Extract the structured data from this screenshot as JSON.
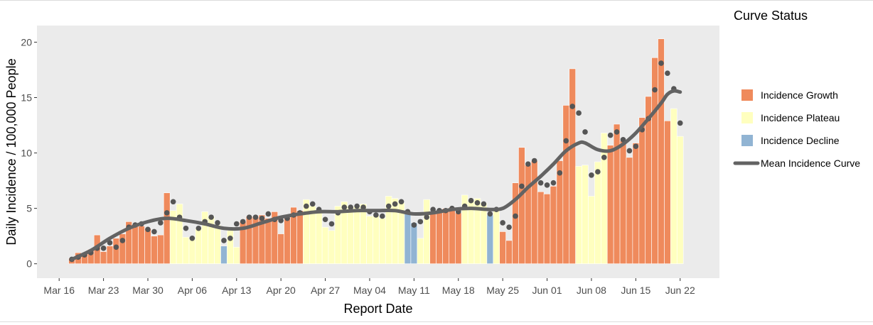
{
  "chart_data": {
    "type": "bar",
    "xlabel": "Report Date",
    "ylabel": "Daily Incidence / 100,000 People",
    "ylim": [
      -1.3,
      21.5
    ],
    "yticks": [
      0,
      5,
      10,
      15,
      20
    ],
    "xticks": [
      {
        "label": "Mar 16",
        "day": 0
      },
      {
        "label": "Mar 23",
        "day": 7
      },
      {
        "label": "Mar 30",
        "day": 14
      },
      {
        "label": "Apr 06",
        "day": 21
      },
      {
        "label": "Apr 13",
        "day": 28
      },
      {
        "label": "Apr 20",
        "day": 35
      },
      {
        "label": "Apr 27",
        "day": 42
      },
      {
        "label": "May 04",
        "day": 49
      },
      {
        "label": "May 11",
        "day": 56
      },
      {
        "label": "May 18",
        "day": 63
      },
      {
        "label": "May 25",
        "day": 70
      },
      {
        "label": "Jun 01",
        "day": 77
      },
      {
        "label": "Jun 08",
        "day": 84
      },
      {
        "label": "Jun 15",
        "day": 91
      },
      {
        "label": "Jun 22",
        "day": 98
      }
    ],
    "bar_days": [
      2,
      3,
      4,
      5,
      6,
      7,
      8,
      9,
      10,
      11,
      12,
      13,
      14,
      15,
      16,
      17,
      18,
      19,
      20,
      21,
      22,
      23,
      24,
      25,
      26,
      27,
      28,
      29,
      30,
      31,
      32,
      33,
      34,
      35,
      36,
      37,
      38,
      39,
      40,
      41,
      42,
      43,
      44,
      45,
      46,
      47,
      48,
      49,
      50,
      51,
      52,
      53,
      54,
      55,
      56,
      57,
      58,
      59,
      60,
      61,
      62,
      63,
      64,
      65,
      66,
      67,
      68,
      69,
      70,
      71,
      72,
      73,
      74,
      75,
      76,
      77,
      78,
      79,
      80,
      81,
      82,
      83,
      84,
      85,
      86,
      87,
      88,
      89,
      90,
      91,
      92,
      93,
      94,
      95,
      96,
      97,
      98
    ],
    "bar_values": [
      0.5,
      1.0,
      0.9,
      1.3,
      2.6,
      1.1,
      1.6,
      2.3,
      2.7,
      3.8,
      3.5,
      3.4,
      3.2,
      2.5,
      2.6,
      6.4,
      4.8,
      5.4,
      2.4,
      2.2,
      3.2,
      4.7,
      4.3,
      3.5,
      1.6,
      3.0,
      1.5,
      3.8,
      4.3,
      4.2,
      4.4,
      4.1,
      4.7,
      2.7,
      4.2,
      5.1,
      4.8,
      5.8,
      5.2,
      4.8,
      3.3,
      3.0,
      5.2,
      5.6,
      5.2,
      5.2,
      5.4,
      4.3,
      4.4,
      4.1,
      6.1,
      5.9,
      5.5,
      4.6,
      3.7,
      2.3,
      5.8,
      4.6,
      4.6,
      5.0,
      5.1,
      4.6,
      6.2,
      5.7,
      5.9,
      5.5,
      4.4,
      5.0,
      2.9,
      2.1,
      7.3,
      10.5,
      8.9,
      9.3,
      6.5,
      6.3,
      7.0,
      9.3,
      14.3,
      17.6,
      8.8,
      8.9,
      6.1,
      9.2,
      11.8,
      10.7,
      12.6,
      11.1,
      9.6,
      10.9,
      13.2,
      15.1,
      18.6,
      20.3,
      12.9,
      14.0,
      11.5
    ],
    "bar_status": [
      "G",
      "G",
      "G",
      "G",
      "G",
      "G",
      "G",
      "G",
      "G",
      "G",
      "G",
      "G",
      "G",
      "G",
      "G",
      "G",
      "P",
      "P",
      "P",
      "P",
      "P",
      "P",
      "P",
      "P",
      "D",
      "P",
      "P",
      "G",
      "G",
      "G",
      "G",
      "G",
      "G",
      "G",
      "G",
      "G",
      "G",
      "P",
      "P",
      "P",
      "P",
      "P",
      "P",
      "P",
      "P",
      "P",
      "P",
      "P",
      "P",
      "P",
      "P",
      "P",
      "P",
      "D",
      "D",
      "P",
      "P",
      "G",
      "G",
      "G",
      "G",
      "G",
      "P",
      "P",
      "P",
      "P",
      "D",
      "P",
      "G",
      "G",
      "G",
      "G",
      "G",
      "G",
      "G",
      "G",
      "G",
      "G",
      "G",
      "G",
      "P",
      "P",
      "P",
      "P",
      "P",
      "G",
      "G",
      "G",
      "G",
      "G",
      "G",
      "G",
      "G",
      "G",
      "G",
      "P",
      "P"
    ],
    "points": [
      0.4,
      0.6,
      0.8,
      1.0,
      1.4,
      1.4,
      1.9,
      1.5,
      2.1,
      3.3,
      3.5,
      3.6,
      3.1,
      2.9,
      3.7,
      4.6,
      5.6,
      4.2,
      3.2,
      2.3,
      3.2,
      3.8,
      4.2,
      3.7,
      2.1,
      2.3,
      3.6,
      3.8,
      4.2,
      4.2,
      4.1,
      4.5,
      4.0,
      3.9,
      4.1,
      4.4,
      4.6,
      5.2,
      5.4,
      4.9,
      4.0,
      3.6,
      4.6,
      5.1,
      5.1,
      5.2,
      5.1,
      4.7,
      4.4,
      4.3,
      5.2,
      5.4,
      5.6,
      4.7,
      3.5,
      3.8,
      4.2,
      4.9,
      4.8,
      4.8,
      5.0,
      4.7,
      5.2,
      5.7,
      5.5,
      5.4,
      4.5,
      4.9,
      3.7,
      3.3,
      4.3,
      7.0,
      9.0,
      9.3,
      7.3,
      7.1,
      7.3,
      8.2,
      11.1,
      14.2,
      13.6,
      11.9,
      8.0,
      8.3,
      9.6,
      11.6,
      11.9,
      11.2,
      10.2,
      10.6,
      12.1,
      13.1,
      15.7,
      18.1,
      17.2,
      15.8,
      12.7
    ],
    "mean_curve": [
      [
        2,
        0.4
      ],
      [
        5,
        1.2
      ],
      [
        8,
        2.3
      ],
      [
        11,
        3.2
      ],
      [
        14,
        3.8
      ],
      [
        17,
        4.1
      ],
      [
        20,
        3.9
      ],
      [
        23,
        3.6
      ],
      [
        26,
        3.2
      ],
      [
        29,
        3.2
      ],
      [
        32,
        3.7
      ],
      [
        35,
        4.2
      ],
      [
        38,
        4.5
      ],
      [
        41,
        4.7
      ],
      [
        44,
        4.7
      ],
      [
        47,
        4.8
      ],
      [
        50,
        4.8
      ],
      [
        53,
        4.8
      ],
      [
        56,
        4.5
      ],
      [
        59,
        4.6
      ],
      [
        62,
        4.9
      ],
      [
        65,
        5.0
      ],
      [
        68,
        4.9
      ],
      [
        70,
        5.0
      ],
      [
        72,
        5.8
      ],
      [
        74,
        6.9
      ],
      [
        76,
        7.9
      ],
      [
        78,
        9.0
      ],
      [
        80,
        10.2
      ],
      [
        82,
        10.9
      ],
      [
        83,
        10.9
      ],
      [
        85,
        10.3
      ],
      [
        87,
        10.2
      ],
      [
        89,
        10.8
      ],
      [
        91,
        11.8
      ],
      [
        93,
        13.1
      ],
      [
        95,
        14.5
      ],
      [
        96,
        15.3
      ],
      [
        97,
        15.6
      ],
      [
        98,
        15.5
      ]
    ],
    "legend": {
      "title": "Curve Status",
      "placement": "right",
      "items": [
        {
          "label": "Incidence Growth",
          "key": "G",
          "color": "#ef8a5c"
        },
        {
          "label": "Incidence Plateau",
          "key": "P",
          "color": "#ffffbf"
        },
        {
          "label": "Incidence Decline",
          "key": "D",
          "color": "#91b4d3"
        },
        {
          "label": "Mean Incidence Curve",
          "key": "line",
          "color": "#636363"
        }
      ]
    },
    "grid": false,
    "panel_color": "#ebebeb",
    "point_color": "#555555",
    "line_color": "#636363"
  }
}
